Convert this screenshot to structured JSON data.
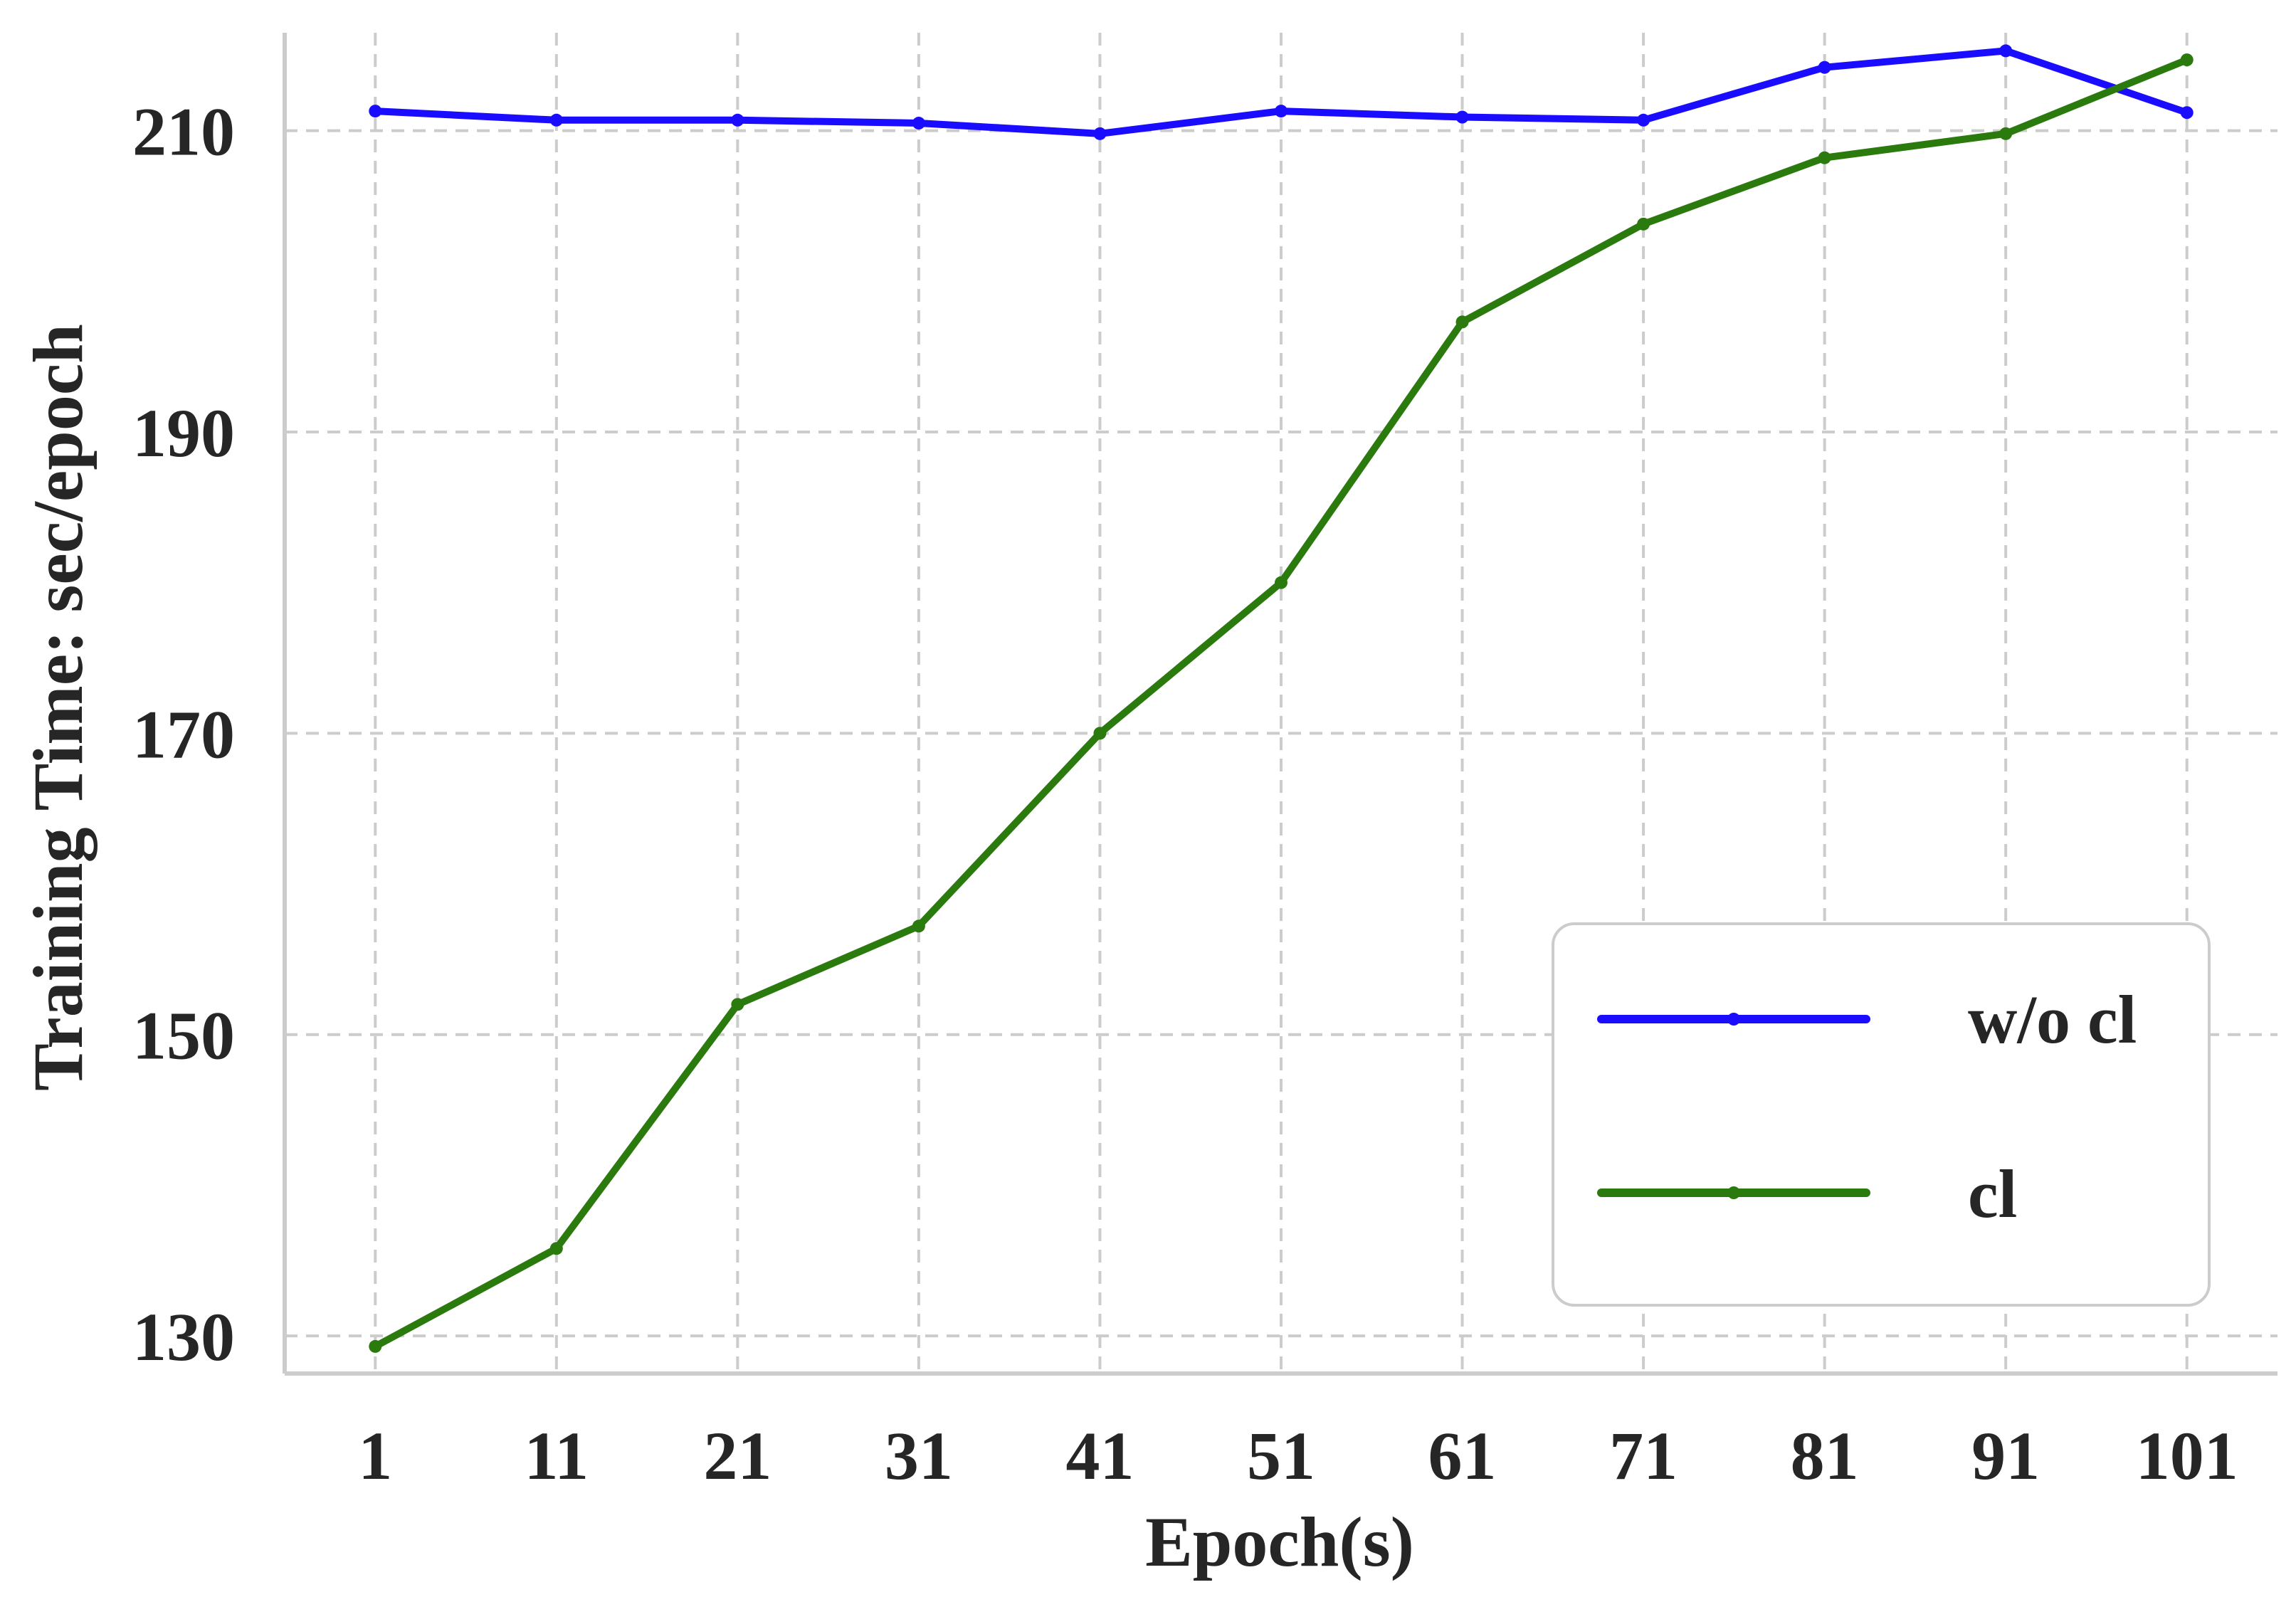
{
  "chart_data": {
    "type": "line",
    "title": "",
    "xlabel": "Epoch(s)",
    "ylabel": "Training Time: sec/epoch",
    "x": [
      1,
      11,
      21,
      31,
      41,
      51,
      61,
      71,
      81,
      91,
      101
    ],
    "x_ticks": [
      "1",
      "11",
      "21",
      "31",
      "41",
      "51",
      "61",
      "71",
      "81",
      "91",
      "101"
    ],
    "y_ticks": [
      130,
      150,
      170,
      190,
      210
    ],
    "ylim": [
      127.5,
      216.5
    ],
    "xlim": [
      -4,
      106
    ],
    "grid": true,
    "legend_position": "lower-right",
    "series": [
      {
        "name": "w/o cl",
        "color": "#1a0dff",
        "values": [
          211.3,
          210.7,
          210.7,
          210.5,
          209.8,
          211.3,
          210.9,
          210.7,
          214.2,
          215.3,
          211.2
        ]
      },
      {
        "name": "cl",
        "color": "#2a7a0e",
        "values": [
          129.3,
          135.8,
          152.0,
          157.2,
          170.0,
          180.0,
          197.3,
          203.8,
          208.2,
          209.8,
          214.7
        ]
      }
    ]
  }
}
